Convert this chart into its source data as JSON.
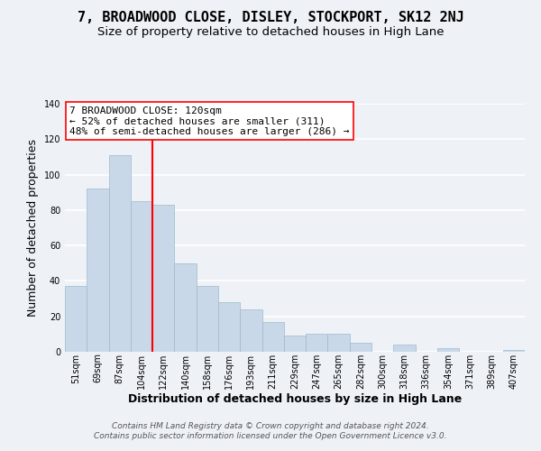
{
  "title": "7, BROADWOOD CLOSE, DISLEY, STOCKPORT, SK12 2NJ",
  "subtitle": "Size of property relative to detached houses in High Lane",
  "xlabel": "Distribution of detached houses by size in High Lane",
  "ylabel": "Number of detached properties",
  "bar_labels": [
    "51sqm",
    "69sqm",
    "87sqm",
    "104sqm",
    "122sqm",
    "140sqm",
    "158sqm",
    "176sqm",
    "193sqm",
    "211sqm",
    "229sqm",
    "247sqm",
    "265sqm",
    "282sqm",
    "300sqm",
    "318sqm",
    "336sqm",
    "354sqm",
    "371sqm",
    "389sqm",
    "407sqm"
  ],
  "bar_values": [
    37,
    92,
    111,
    85,
    83,
    50,
    37,
    28,
    24,
    17,
    9,
    10,
    10,
    5,
    0,
    4,
    0,
    2,
    0,
    0,
    1
  ],
  "bar_color": "#c8d8e8",
  "bar_edge_color": "#a0b8cc",
  "highlight_line_color": "red",
  "annotation_title": "7 BROADWOOD CLOSE: 120sqm",
  "annotation_line1": "← 52% of detached houses are smaller (311)",
  "annotation_line2": "48% of semi-detached houses are larger (286) →",
  "annotation_box_color": "white",
  "annotation_box_edge": "red",
  "ylim": [
    0,
    140
  ],
  "yticks": [
    0,
    20,
    40,
    60,
    80,
    100,
    120,
    140
  ],
  "footer1": "Contains HM Land Registry data © Crown copyright and database right 2024.",
  "footer2": "Contains public sector information licensed under the Open Government Licence v3.0.",
  "background_color": "#eef2f7",
  "grid_color": "white",
  "title_fontsize": 11,
  "subtitle_fontsize": 9.5,
  "axis_label_fontsize": 9,
  "tick_fontsize": 7,
  "annotation_fontsize": 8,
  "footer_fontsize": 6.5
}
